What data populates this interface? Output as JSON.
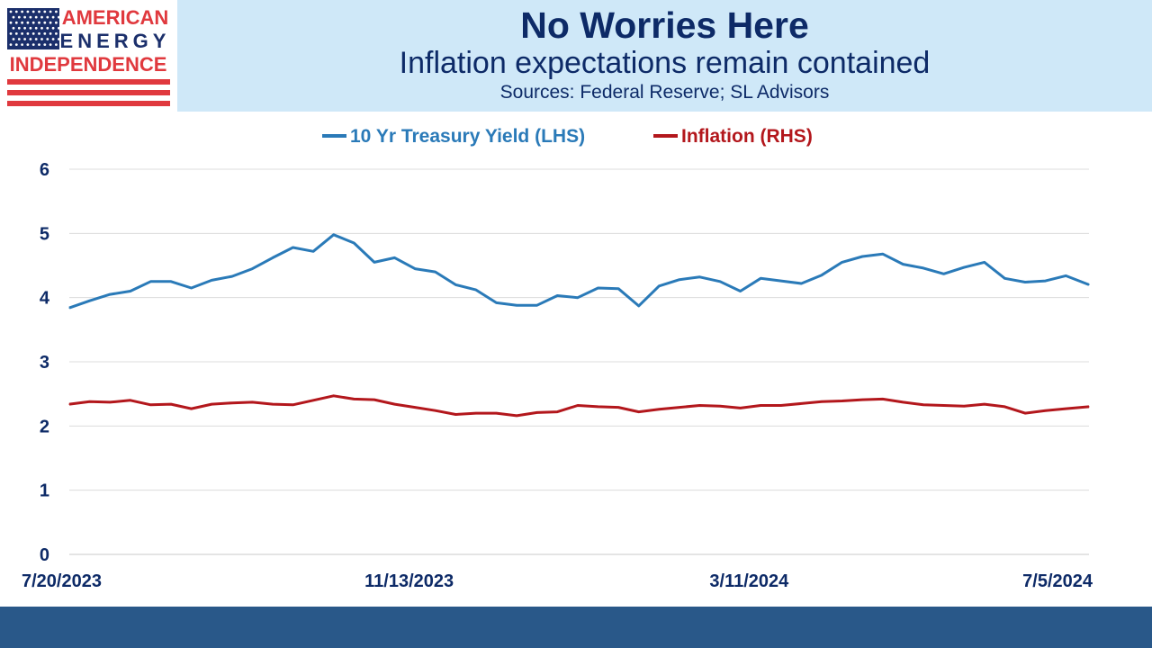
{
  "logo": {
    "line1": "AMERICAN",
    "line2": "ENERGY",
    "line3": "INDEPENDENCE",
    "colors": {
      "blue": "#1b2f6b",
      "red": "#e0393e"
    }
  },
  "header": {
    "title": "No Worries Here",
    "subtitle": "Inflation expectations remain contained",
    "sources": "Sources: Federal Reserve; SL Advisors"
  },
  "chart_data": {
    "type": "line",
    "title": "",
    "xlabel": "",
    "ylabel": "",
    "ylim": [
      0,
      6
    ],
    "y_ticks": [
      "0",
      "1",
      "2",
      "3",
      "4",
      "5",
      "6"
    ],
    "x_tick_labels": [
      "7/20/2023",
      "11/13/2023",
      "3/11/2024",
      "7/5/2024"
    ],
    "grid": true,
    "legend_position": "top",
    "series": [
      {
        "name": "10 Yr Treasury Yield (LHS)",
        "color": "#2a7ab8",
        "x": [
          "2023-07-20",
          "2023-07-27",
          "2023-08-03",
          "2023-08-10",
          "2023-08-17",
          "2023-08-24",
          "2023-08-31",
          "2023-09-07",
          "2023-09-14",
          "2023-09-21",
          "2023-09-28",
          "2023-10-05",
          "2023-10-12",
          "2023-10-19",
          "2023-10-26",
          "2023-11-02",
          "2023-11-09",
          "2023-11-16",
          "2023-11-23",
          "2023-11-30",
          "2023-12-07",
          "2023-12-14",
          "2023-12-21",
          "2023-12-28",
          "2024-01-04",
          "2024-01-11",
          "2024-01-18",
          "2024-01-25",
          "2024-02-01",
          "2024-02-08",
          "2024-02-15",
          "2024-02-22",
          "2024-02-29",
          "2024-03-07",
          "2024-03-14",
          "2024-03-21",
          "2024-03-28",
          "2024-04-04",
          "2024-04-11",
          "2024-04-18",
          "2024-04-25",
          "2024-05-02",
          "2024-05-09",
          "2024-05-16",
          "2024-05-23",
          "2024-05-30",
          "2024-06-06",
          "2024-06-13",
          "2024-06-20",
          "2024-06-27",
          "2024-07-05"
        ],
        "values": [
          3.84,
          3.95,
          4.05,
          4.1,
          4.25,
          4.25,
          4.15,
          4.27,
          4.33,
          4.45,
          4.62,
          4.78,
          4.72,
          4.98,
          4.85,
          4.55,
          4.62,
          4.45,
          4.4,
          4.2,
          4.12,
          3.92,
          3.88,
          3.88,
          4.03,
          4.0,
          4.15,
          4.14,
          3.87,
          4.18,
          4.28,
          4.32,
          4.25,
          4.1,
          4.3,
          4.26,
          4.22,
          4.35,
          4.55,
          4.64,
          4.68,
          4.52,
          4.46,
          4.37,
          4.47,
          4.55,
          4.3,
          4.24,
          4.26,
          4.34,
          4.2
        ]
      },
      {
        "name": "Inflation (RHS)",
        "color": "#b3171c",
        "x": [
          "2023-07-20",
          "2023-07-27",
          "2023-08-03",
          "2023-08-10",
          "2023-08-17",
          "2023-08-24",
          "2023-08-31",
          "2023-09-07",
          "2023-09-14",
          "2023-09-21",
          "2023-09-28",
          "2023-10-05",
          "2023-10-12",
          "2023-10-19",
          "2023-10-26",
          "2023-11-02",
          "2023-11-09",
          "2023-11-16",
          "2023-11-23",
          "2023-11-30",
          "2023-12-07",
          "2023-12-14",
          "2023-12-21",
          "2023-12-28",
          "2024-01-04",
          "2024-01-11",
          "2024-01-18",
          "2024-01-25",
          "2024-02-01",
          "2024-02-08",
          "2024-02-15",
          "2024-02-22",
          "2024-02-29",
          "2024-03-07",
          "2024-03-14",
          "2024-03-21",
          "2024-03-28",
          "2024-04-04",
          "2024-04-11",
          "2024-04-18",
          "2024-04-25",
          "2024-05-02",
          "2024-05-09",
          "2024-05-16",
          "2024-05-23",
          "2024-05-30",
          "2024-06-06",
          "2024-06-13",
          "2024-06-20",
          "2024-06-27",
          "2024-07-05"
        ],
        "values": [
          2.34,
          2.38,
          2.37,
          2.4,
          2.33,
          2.34,
          2.27,
          2.34,
          2.36,
          2.37,
          2.34,
          2.33,
          2.4,
          2.47,
          2.42,
          2.41,
          2.34,
          2.29,
          2.24,
          2.18,
          2.2,
          2.2,
          2.16,
          2.21,
          2.22,
          2.32,
          2.3,
          2.29,
          2.22,
          2.26,
          2.29,
          2.32,
          2.31,
          2.28,
          2.32,
          2.32,
          2.35,
          2.38,
          2.39,
          2.41,
          2.42,
          2.37,
          2.33,
          2.32,
          2.31,
          2.34,
          2.3,
          2.2,
          2.24,
          2.27,
          2.3
        ]
      }
    ]
  }
}
